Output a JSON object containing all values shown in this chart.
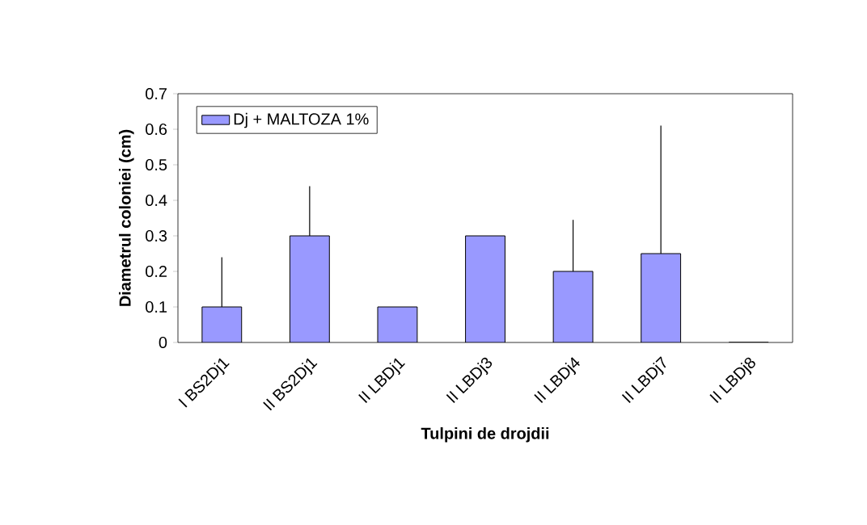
{
  "chart_data": {
    "type": "bar",
    "xlabel": "Tulpini de drojdii",
    "ylabel": "Diametrul coloniei (cm)",
    "categories": [
      "I BS2Dj1",
      "II BS2Dj1",
      "II LBDj1",
      "II LBDj3",
      "II LBDj4",
      "II LBDj7",
      "II LBDj8"
    ],
    "series": [
      {
        "name": "Dj + MALTOZA 1%",
        "color": "#9999ff",
        "values": [
          0.1,
          0.3,
          0.1,
          0.3,
          0.2,
          0.25,
          0
        ],
        "errors": [
          [
            0.1,
            0.24
          ],
          [
            0.3,
            0.44
          ],
          null,
          null,
          [
            0.2,
            0.345
          ],
          [
            0.25,
            0.61
          ],
          null
        ]
      }
    ],
    "ylim": [
      0,
      0.7
    ],
    "yticks": [
      0,
      0.1,
      0.2,
      0.3,
      0.4,
      0.5,
      0.6,
      0.7
    ],
    "grid": false,
    "legend": "top left"
  }
}
